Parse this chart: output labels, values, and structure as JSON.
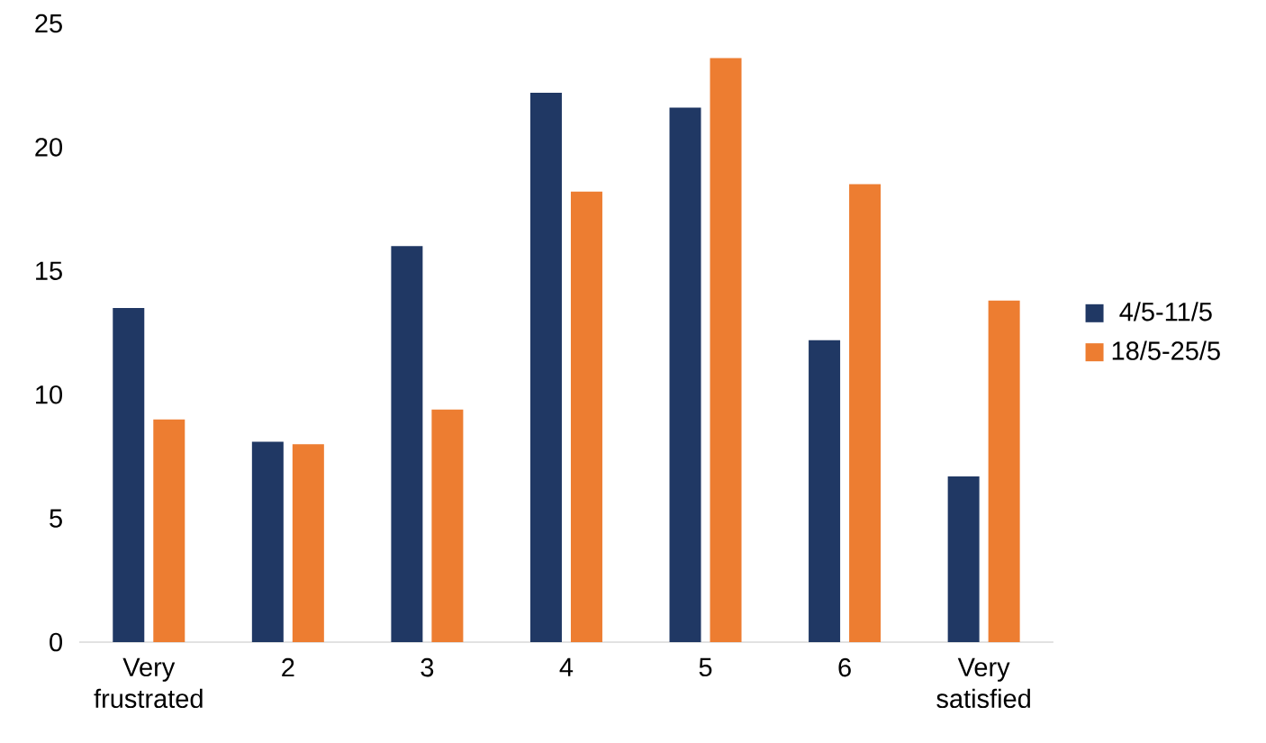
{
  "chart_data": {
    "type": "bar",
    "categories": [
      "Very frustrated",
      "2",
      "3",
      "4",
      "5",
      "6",
      "Very satisfied"
    ],
    "series": [
      {
        "name": "4/5-11/5",
        "color": "#203864",
        "values": [
          13.5,
          8.1,
          16.0,
          22.2,
          21.6,
          12.2,
          6.7
        ]
      },
      {
        "name": "18/5-25/5",
        "color": "#ed7d31",
        "values": [
          9.0,
          8.0,
          9.4,
          18.2,
          23.6,
          18.5,
          13.8
        ]
      }
    ],
    "ylim": [
      0,
      25
    ],
    "yticks": [
      0,
      5,
      10,
      15,
      20,
      25
    ],
    "legend": "right"
  }
}
